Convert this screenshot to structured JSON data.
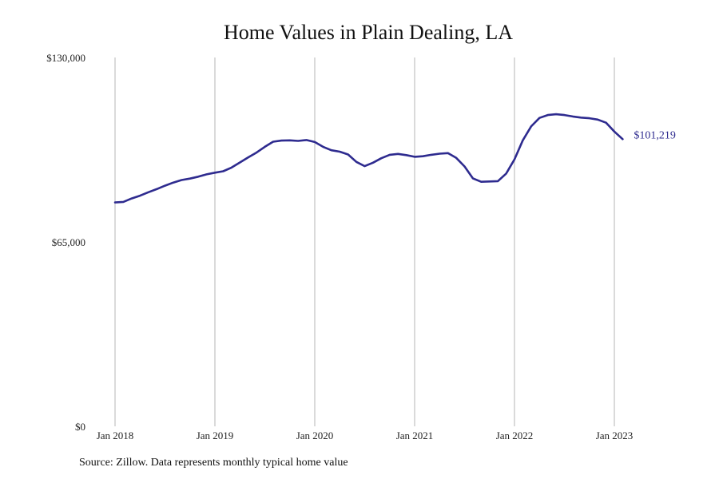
{
  "chart_data": {
    "type": "line",
    "title": "Home Values in Plain Dealing, LA",
    "xlabel": "",
    "ylabel": "",
    "ylim": [
      0,
      130000
    ],
    "yticks": [
      {
        "value": 0,
        "label": "$0"
      },
      {
        "value": 65000,
        "label": "$65,000"
      },
      {
        "value": 130000,
        "label": "$130,000"
      }
    ],
    "xticks": [
      {
        "value": 2018,
        "label": "Jan 2018"
      },
      {
        "value": 2019,
        "label": "Jan 2019"
      },
      {
        "value": 2020,
        "label": "Jan 2020"
      },
      {
        "value": 2021,
        "label": "Jan 2021"
      },
      {
        "value": 2022,
        "label": "Jan 2022"
      },
      {
        "value": 2023,
        "label": "Jan 2023"
      }
    ],
    "xlim": [
      2018,
      2023
    ],
    "grid": "vertical",
    "line_color": "#2e2b8f",
    "end_label": "$101,219",
    "series": [
      {
        "x": [
          "2018-01",
          "2018-02",
          "2018-03",
          "2018-04",
          "2018-05",
          "2018-06",
          "2018-07",
          "2018-08",
          "2018-09",
          "2018-10",
          "2018-11",
          "2018-12",
          "2019-01",
          "2019-02",
          "2019-03",
          "2019-04",
          "2019-05",
          "2019-06",
          "2019-07",
          "2019-08",
          "2019-09",
          "2019-10",
          "2019-11",
          "2019-12",
          "2020-01",
          "2020-02",
          "2020-03",
          "2020-04",
          "2020-05",
          "2020-06",
          "2020-07",
          "2020-08",
          "2020-09",
          "2020-10",
          "2020-11",
          "2020-12",
          "2021-01",
          "2021-02",
          "2021-03",
          "2021-04",
          "2021-05",
          "2021-06",
          "2021-07",
          "2021-08",
          "2021-09",
          "2021-10",
          "2021-11",
          "2021-12",
          "2022-01",
          "2022-02",
          "2022-03",
          "2022-04",
          "2022-05",
          "2022-06",
          "2022-07",
          "2022-08",
          "2022-09",
          "2022-10",
          "2022-11",
          "2022-12",
          "2023-01",
          "2023-02"
        ],
        "values": [
          78900,
          79100,
          80300,
          81300,
          82500,
          83600,
          84800,
          85900,
          86800,
          87300,
          88000,
          88800,
          89400,
          89900,
          91200,
          93000,
          94800,
          96500,
          98500,
          100300,
          100700,
          100800,
          100600,
          100900,
          100200,
          98500,
          97300,
          96800,
          95800,
          93200,
          91700,
          92900,
          94500,
          95700,
          96000,
          95600,
          95000,
          95200,
          95700,
          96100,
          96300,
          94600,
          91600,
          87400,
          86200,
          86300,
          86400,
          89100,
          94100,
          100800,
          105700,
          108700,
          109700,
          110000,
          109700,
          109200,
          108800,
          108600,
          108100,
          107000,
          103900,
          101219
        ]
      }
    ]
  },
  "footer": {
    "source": "Source: Zillow. Data represents monthly typical home value"
  }
}
